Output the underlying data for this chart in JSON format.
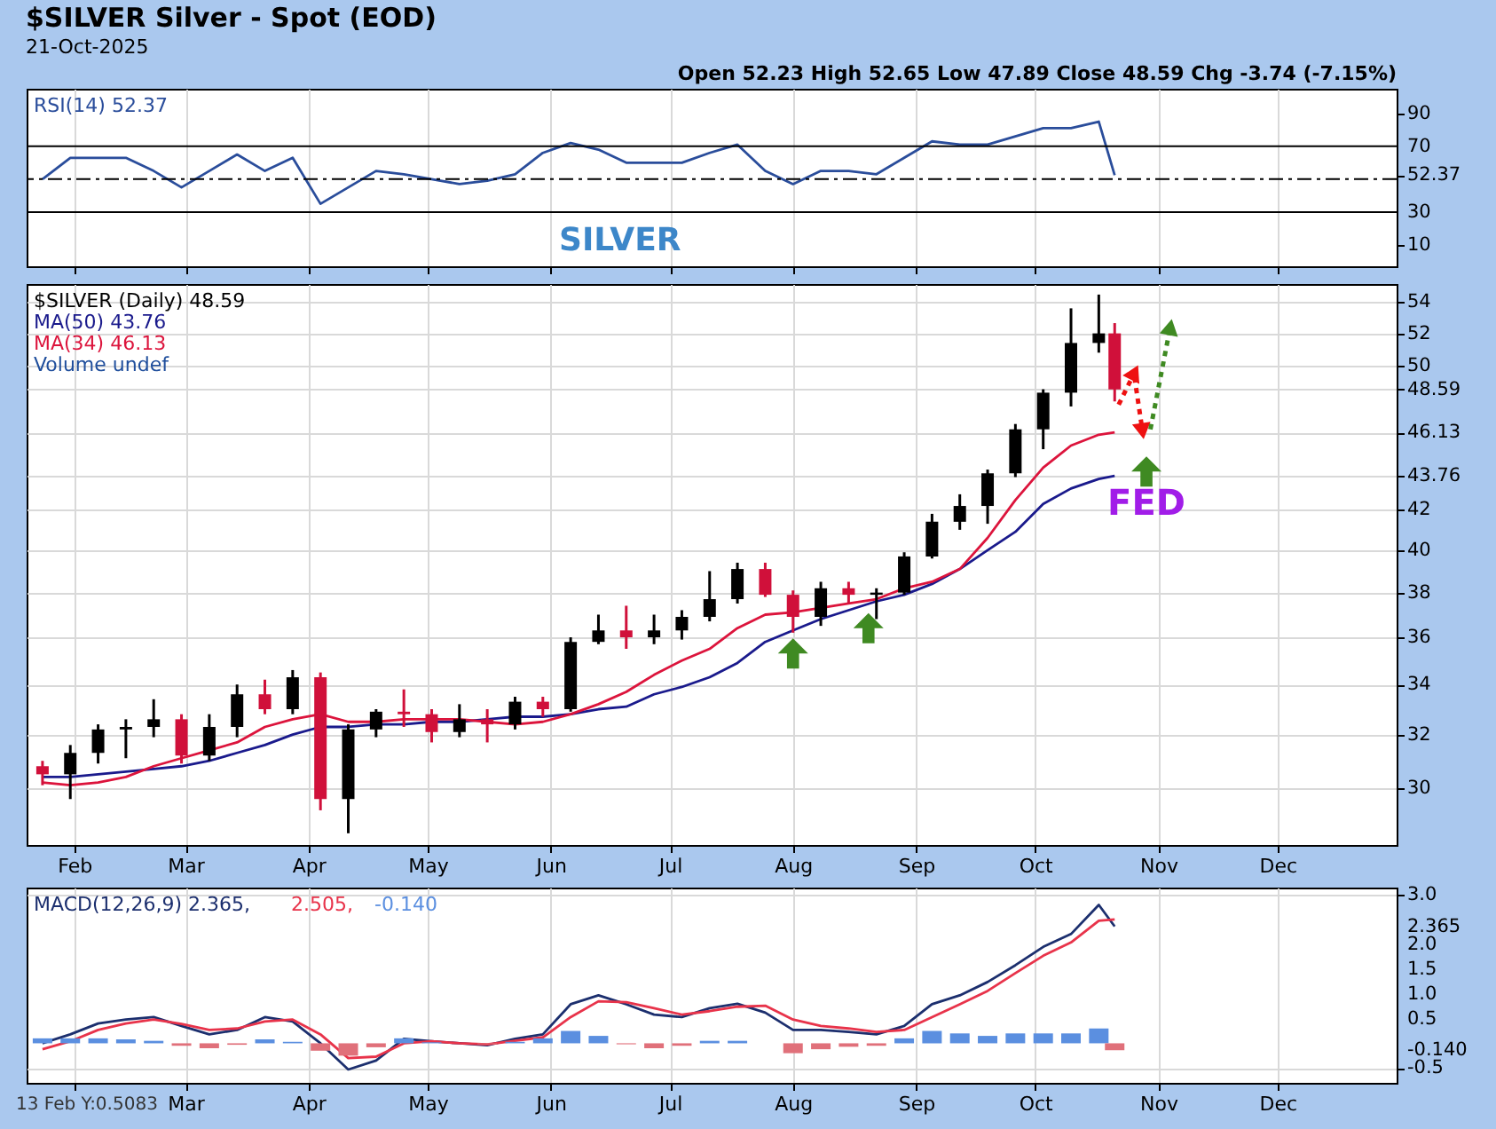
{
  "chart_data": [
    {
      "type": "line",
      "title": "$SILVER Silver - Spot (EOD)",
      "subtitle": "21-Oct-2025",
      "x": [
        "2025-01-24",
        "2025-01-31",
        "2025-02-07",
        "2025-02-14",
        "2025-02-21",
        "2025-02-28",
        "2025-03-07",
        "2025-03-14",
        "2025-03-21",
        "2025-03-28",
        "2025-04-04",
        "2025-04-11",
        "2025-04-18",
        "2025-04-25",
        "2025-05-02",
        "2025-05-09",
        "2025-05-16",
        "2025-05-23",
        "2025-05-30",
        "2025-06-06",
        "2025-06-13",
        "2025-06-20",
        "2025-06-27",
        "2025-07-04",
        "2025-07-11",
        "2025-07-18",
        "2025-07-25",
        "2025-08-01",
        "2025-08-08",
        "2025-08-15",
        "2025-08-22",
        "2025-08-29",
        "2025-09-05",
        "2025-09-12",
        "2025-09-19",
        "2025-09-26",
        "2025-10-03",
        "2025-10-10",
        "2025-10-17",
        "2025-10-21"
      ],
      "series": [
        {
          "name": "RSI(14) 52.37",
          "color": "#2a4d9b",
          "values": [
            50,
            63,
            63,
            63,
            55,
            45,
            55,
            65,
            55,
            63,
            35,
            45,
            55,
            53,
            50,
            47,
            49,
            53,
            66,
            72,
            68,
            60,
            60,
            60,
            66,
            71,
            55,
            47,
            55,
            55,
            53,
            63,
            73,
            71,
            71,
            76,
            81,
            81,
            85,
            52.37
          ]
        }
      ],
      "xlim": [
        "2025-01-20",
        "2025-12-31"
      ],
      "xticks": [
        "2025-02-01",
        "2025-03-01",
        "2025-04-01",
        "2025-05-01",
        "2025-06-01",
        "2025-07-01",
        "2025-08-01",
        "2025-09-01",
        "2025-10-01",
        "2025-11-01",
        "2025-12-01"
      ],
      "ylim": [
        -3,
        105
      ],
      "yticks": [
        10,
        30,
        {
          "value": 52.37,
          "label": "52.37"
        },
        70,
        90
      ],
      "ref_lines": [
        {
          "axis": "y",
          "value": 70
        },
        {
          "axis": "y",
          "value": 30
        },
        {
          "axis": "y",
          "value": 50,
          "line_style": "dashed"
        }
      ],
      "annotations": [
        "SILVER",
        "Open 52.23  High 52.65  Low 47.89  Close 48.59  Chg -3.74 (-7.15%)"
      ],
      "grid": "x",
      "legend": "top left",
      "tick_labels": "y"
    },
    {
      "type": "candlestick",
      "x": [
        "2025-01-24",
        "2025-01-31",
        "2025-02-07",
        "2025-02-14",
        "2025-02-21",
        "2025-02-28",
        "2025-03-07",
        "2025-03-14",
        "2025-03-21",
        "2025-03-28",
        "2025-04-04",
        "2025-04-11",
        "2025-04-18",
        "2025-04-25",
        "2025-05-02",
        "2025-05-09",
        "2025-05-16",
        "2025-05-23",
        "2025-05-30",
        "2025-06-06",
        "2025-06-13",
        "2025-06-20",
        "2025-06-27",
        "2025-07-04",
        "2025-07-11",
        "2025-07-18",
        "2025-07-25",
        "2025-08-01",
        "2025-08-08",
        "2025-08-15",
        "2025-08-22",
        "2025-08-29",
        "2025-09-05",
        "2025-09-12",
        "2025-09-19",
        "2025-09-26",
        "2025-10-03",
        "2025-10-10",
        "2025-10-17",
        "2025-10-21"
      ],
      "series": [
        {
          "name": "$SILVER (Daily) 48.59",
          "ohlc": [
            [
              30.8,
              31.0,
              30.1,
              30.5
            ],
            [
              30.5,
              31.6,
              29.6,
              31.3
            ],
            [
              31.3,
              32.4,
              30.9,
              32.2
            ],
            [
              32.2,
              32.6,
              31.1,
              32.3
            ],
            [
              32.3,
              33.4,
              31.9,
              32.6
            ],
            [
              32.6,
              32.8,
              30.9,
              31.2
            ],
            [
              31.2,
              32.8,
              31.0,
              32.3
            ],
            [
              32.3,
              34.0,
              31.9,
              33.6
            ],
            [
              33.6,
              34.2,
              32.8,
              33.0
            ],
            [
              33.0,
              34.6,
              32.8,
              34.3
            ],
            [
              34.3,
              34.5,
              29.2,
              29.6
            ],
            [
              29.6,
              32.4,
              28.4,
              32.2
            ],
            [
              32.2,
              33.0,
              31.9,
              32.9
            ],
            [
              32.9,
              33.8,
              32.3,
              32.8
            ],
            [
              32.8,
              33.0,
              31.7,
              32.1
            ],
            [
              32.1,
              33.2,
              31.9,
              32.6
            ],
            [
              32.6,
              33.0,
              31.7,
              32.4
            ],
            [
              32.4,
              33.5,
              32.2,
              33.3
            ],
            [
              33.3,
              33.5,
              32.7,
              33.0
            ],
            [
              33.0,
              36.0,
              32.9,
              35.8
            ],
            [
              35.8,
              37.0,
              35.7,
              36.3
            ],
            [
              36.3,
              37.4,
              35.5,
              36.0
            ],
            [
              36.0,
              37.0,
              35.7,
              36.3
            ],
            [
              36.3,
              37.2,
              35.9,
              36.9
            ],
            [
              36.9,
              39.0,
              36.7,
              37.7
            ],
            [
              37.7,
              39.4,
              37.5,
              39.1
            ],
            [
              39.1,
              39.4,
              37.8,
              37.9
            ],
            [
              37.9,
              38.1,
              36.2,
              36.9
            ],
            [
              36.9,
              38.5,
              36.5,
              38.2
            ],
            [
              38.2,
              38.5,
              37.5,
              37.9
            ],
            [
              37.9,
              38.2,
              36.8,
              38.0
            ],
            [
              38.0,
              39.9,
              37.9,
              39.7
            ],
            [
              39.7,
              41.8,
              39.6,
              41.4
            ],
            [
              41.4,
              42.8,
              41.0,
              42.2
            ],
            [
              42.2,
              44.1,
              41.3,
              43.9
            ],
            [
              43.9,
              46.6,
              43.7,
              46.3
            ],
            [
              46.3,
              48.6,
              45.2,
              48.4
            ],
            [
              48.4,
              53.6,
              47.6,
              51.4
            ],
            [
              51.4,
              54.5,
              50.8,
              52.0
            ],
            [
              52.0,
              52.65,
              47.89,
              48.59
            ]
          ],
          "colors": [
            "#d0103a",
            "#000000",
            "#000000",
            "#000000",
            "#000000",
            "#d0103a",
            "#000000",
            "#000000",
            "#d0103a",
            "#000000",
            "#d0103a",
            "#000000",
            "#000000",
            "#d0103a",
            "#d0103a",
            "#000000",
            "#d0103a",
            "#000000",
            "#d0103a",
            "#000000",
            "#000000",
            "#d0103a",
            "#000000",
            "#000000",
            "#000000",
            "#000000",
            "#d0103a",
            "#d0103a",
            "#000000",
            "#d0103a",
            "#000000",
            "#000000",
            "#000000",
            "#000000",
            "#000000",
            "#000000",
            "#000000",
            "#000000",
            "#000000",
            "#d0103a"
          ]
        },
        {
          "type": "line",
          "name": "MA(50) 43.76",
          "color": "#1a1a8c",
          "values": [
            30.4,
            30.4,
            30.5,
            30.6,
            30.7,
            30.8,
            31.0,
            31.3,
            31.6,
            32.0,
            32.3,
            32.3,
            32.4,
            32.4,
            32.5,
            32.5,
            32.6,
            32.7,
            32.7,
            32.8,
            33.0,
            33.1,
            33.6,
            33.9,
            34.3,
            34.9,
            35.8,
            36.3,
            36.8,
            37.2,
            37.6,
            37.9,
            38.4,
            39.1,
            40.0,
            40.9,
            42.3,
            43.1,
            43.6,
            43.76
          ]
        },
        {
          "type": "line",
          "name": "MA(34) 46.13",
          "color": "#dc143c",
          "values": [
            30.2,
            30.1,
            30.2,
            30.4,
            30.8,
            31.1,
            31.4,
            31.7,
            32.3,
            32.6,
            32.8,
            32.5,
            32.5,
            32.6,
            32.6,
            32.6,
            32.5,
            32.4,
            32.5,
            32.8,
            33.2,
            33.7,
            34.4,
            35.0,
            35.5,
            36.4,
            37.0,
            37.1,
            37.3,
            37.5,
            37.7,
            38.2,
            38.5,
            39.1,
            40.6,
            42.5,
            44.2,
            45.4,
            46.0,
            46.13
          ]
        }
      ],
      "log": true,
      "ylim": [
        28,
        55.2
      ],
      "yticks": [
        30,
        32,
        34,
        36,
        38,
        40,
        42,
        {
          "value": 43.76,
          "label": "43.76"
        },
        {
          "value": 46.13,
          "label": "46.13"
        },
        {
          "value": 48.59,
          "label": "48.59"
        },
        50,
        52,
        54
      ],
      "xlim": [
        "2025-01-20",
        "2025-12-31"
      ],
      "xticks": [
        {
          "value": "2025-02-01",
          "label": "Feb"
        },
        {
          "value": "2025-03-01",
          "label": "Mar"
        },
        {
          "value": "2025-04-01",
          "label": "Apr"
        },
        {
          "value": "2025-05-01",
          "label": "May"
        },
        {
          "value": "2025-06-01",
          "label": "Jun"
        },
        {
          "value": "2025-07-01",
          "label": "Jul"
        },
        {
          "value": "2025-08-01",
          "label": "Aug"
        },
        {
          "value": "2025-09-01",
          "label": "Sep"
        },
        {
          "value": "2025-10-01",
          "label": "Oct"
        },
        {
          "value": "2025-11-01",
          "label": "Nov"
        },
        {
          "value": "2025-12-01",
          "label": "Dec"
        }
      ],
      "annotations": [
        "Volume undef",
        "FED"
      ],
      "grid": true,
      "legend": "top left"
    },
    {
      "type": "line",
      "x": [
        "2025-01-24",
        "2025-01-31",
        "2025-02-07",
        "2025-02-14",
        "2025-02-21",
        "2025-02-28",
        "2025-03-07",
        "2025-03-14",
        "2025-03-21",
        "2025-03-28",
        "2025-04-04",
        "2025-04-11",
        "2025-04-18",
        "2025-04-25",
        "2025-05-02",
        "2025-05-09",
        "2025-05-16",
        "2025-05-23",
        "2025-05-30",
        "2025-06-06",
        "2025-06-13",
        "2025-06-20",
        "2025-06-27",
        "2025-07-04",
        "2025-07-11",
        "2025-07-18",
        "2025-07-25",
        "2025-08-01",
        "2025-08-08",
        "2025-08-15",
        "2025-08-22",
        "2025-08-29",
        "2025-09-05",
        "2025-09-12",
        "2025-09-19",
        "2025-09-26",
        "2025-10-03",
        "2025-10-10",
        "2025-10-17",
        "2025-10-21"
      ],
      "series": [
        {
          "name": "MACD(12,26,9) 2.365,",
          "color": "#1c2f6e",
          "values": [
            0.0,
            0.18,
            0.4,
            0.48,
            0.53,
            0.35,
            0.18,
            0.27,
            0.53,
            0.44,
            0.0,
            -0.53,
            -0.35,
            0.09,
            0.04,
            0.0,
            -0.04,
            0.09,
            0.18,
            0.79,
            0.97,
            0.79,
            0.58,
            0.53,
            0.71,
            0.8,
            0.62,
            0.27,
            0.27,
            0.23,
            0.18,
            0.35,
            0.79,
            0.97,
            1.24,
            1.58,
            1.95,
            2.21,
            2.8,
            2.365
          ]
        },
        {
          "name": "2.505,",
          "color": "#e8334a",
          "values": [
            -0.12,
            0.04,
            0.27,
            0.4,
            0.48,
            0.39,
            0.27,
            0.3,
            0.44,
            0.48,
            0.18,
            -0.3,
            -0.27,
            0.0,
            0.04,
            0.0,
            -0.02,
            0.05,
            0.12,
            0.53,
            0.85,
            0.83,
            0.71,
            0.58,
            0.65,
            0.74,
            0.76,
            0.48,
            0.35,
            0.3,
            0.23,
            0.27,
            0.53,
            0.79,
            1.06,
            1.42,
            1.77,
            2.04,
            2.48,
            2.505
          ]
        },
        {
          "type": "bar",
          "name": "-0.140",
          "color": "#5b8fe0",
          "values": [
            0.1,
            0.1,
            0.1,
            0.08,
            0.05,
            -0.05,
            -0.1,
            -0.03,
            0.08,
            0.03,
            -0.15,
            -0.25,
            -0.08,
            0.1,
            0.02,
            0.0,
            -0.02,
            0.03,
            0.1,
            0.25,
            0.15,
            -0.02,
            -0.1,
            -0.05,
            0.05,
            0.05,
            0.0,
            -0.2,
            -0.12,
            -0.07,
            -0.05,
            0.1,
            0.25,
            0.2,
            0.15,
            0.2,
            0.2,
            0.2,
            0.3,
            -0.14
          ],
          "colors": [
            "#5b8fe0",
            "#5b8fe0",
            "#5b8fe0",
            "#5b8fe0",
            "#5b8fe0",
            "#e0707a",
            "#e0707a",
            "#e0707a",
            "#5b8fe0",
            "#5b8fe0",
            "#e0707a",
            "#e0707a",
            "#e0707a",
            "#5b8fe0",
            "#5b8fe0",
            "#5b8fe0",
            "#e0707a",
            "#5b8fe0",
            "#5b8fe0",
            "#5b8fe0",
            "#5b8fe0",
            "#e0707a",
            "#e0707a",
            "#e0707a",
            "#5b8fe0",
            "#5b8fe0",
            "#5b8fe0",
            "#e0707a",
            "#e0707a",
            "#e0707a",
            "#e0707a",
            "#5b8fe0",
            "#5b8fe0",
            "#5b8fe0",
            "#5b8fe0",
            "#5b8fe0",
            "#5b8fe0",
            "#5b8fe0",
            "#5b8fe0",
            "#e0707a"
          ]
        }
      ],
      "ylim": [
        -0.8,
        3.15
      ],
      "yticks": [
        {
          "value": 3,
          "label": "3.0"
        },
        {
          "value": 2.365,
          "label": "2.365"
        },
        {
          "value": 2,
          "label": "2.0"
        },
        1.5,
        {
          "value": 1,
          "label": "1.0"
        },
        0.5,
        {
          "value": -0.14,
          "label": "-0.140"
        },
        -0.5
      ],
      "xlim": [
        "2025-01-20",
        "2025-12-31"
      ],
      "xticks": [
        {
          "value": "2025-02-01",
          "label": null
        },
        {
          "value": "2025-03-01",
          "label": "Mar"
        },
        {
          "value": "2025-04-01",
          "label": "Apr"
        },
        {
          "value": "2025-05-01",
          "label": "May"
        },
        {
          "value": "2025-06-01",
          "label": "Jun"
        },
        {
          "value": "2025-07-01",
          "label": "Jul"
        },
        {
          "value": "2025-08-01",
          "label": "Aug"
        },
        {
          "value": "2025-09-01",
          "label": "Sep"
        },
        {
          "value": "2025-10-01",
          "label": "Oct"
        },
        {
          "value": "2025-11-01",
          "label": "Nov"
        },
        {
          "value": "2025-12-01",
          "label": "Dec"
        }
      ],
      "annotations": [
        "13 Feb Y:0.5083"
      ],
      "grid": true,
      "legend": "top left"
    }
  ]
}
